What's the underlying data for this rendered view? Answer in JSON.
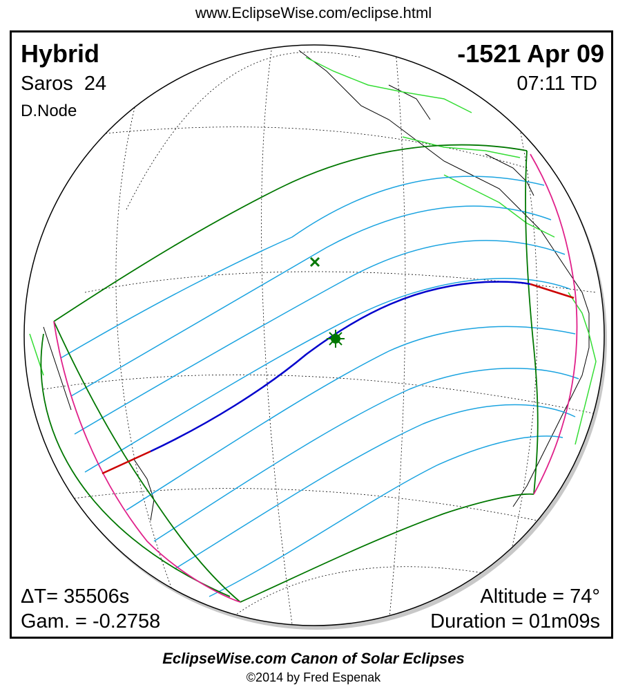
{
  "header": {
    "url": "www.EclipseWise.com/eclipse.html"
  },
  "eclipse": {
    "type": "Hybrid",
    "date": "-1521 Apr 09",
    "saros_label": "Saros",
    "saros_number": "24",
    "time": "07:11 TD",
    "node": "D.Node",
    "delta_t": "ΔT=  35506s",
    "gamma": "Gam. = -0.2758",
    "altitude": "Altitude = 74°",
    "duration": "Duration = 01m09s"
  },
  "footer": {
    "title": "EclipseWise.com Canon of Solar Eclipses",
    "copyright": "©2014 by Fred Espenak"
  },
  "map": {
    "colors": {
      "coastline": "#000000",
      "graticule": "#000000",
      "penumbral_limit": "#007700",
      "partial_isochrones": "#1aa3e0",
      "central_path_total": "#0000cc",
      "central_path_annular": "#cc0000",
      "sunrise_sunset_limits": "#e0208a",
      "borders": "#33dd33"
    },
    "markers": [
      {
        "name": "greatest-eclipse",
        "symbol": "star"
      },
      {
        "name": "sub-solar-point",
        "symbol": "x"
      }
    ]
  }
}
